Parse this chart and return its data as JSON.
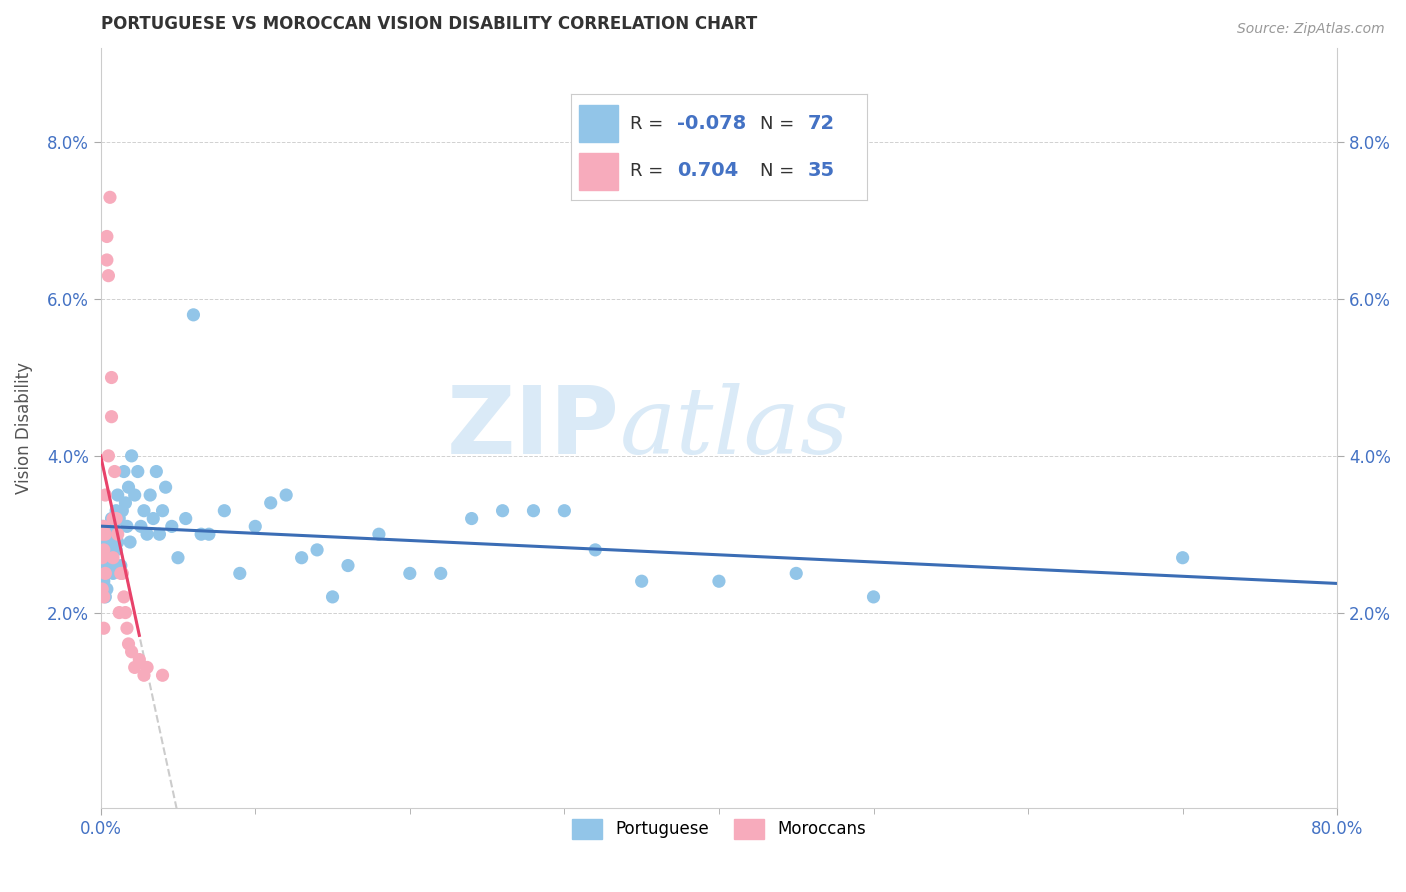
{
  "title": "PORTUGUESE VS MOROCCAN VISION DISABILITY CORRELATION CHART",
  "source": "Source: ZipAtlas.com",
  "ylabel": "Vision Disability",
  "xlim": [
    0.0,
    0.8
  ],
  "ylim": [
    -0.005,
    0.092
  ],
  "yticks": [
    0.02,
    0.04,
    0.06,
    0.08
  ],
  "yticklabels": [
    "2.0%",
    "4.0%",
    "6.0%",
    "8.0%"
  ],
  "xtick_positions": [
    0.0,
    0.8
  ],
  "xticklabels": [
    "0.0%",
    "80.0%"
  ],
  "portuguese_color": "#92C5E8",
  "moroccan_color": "#F7ABBC",
  "portuguese_line_color": "#3B6DB5",
  "moroccan_line_color": "#E8426A",
  "moroccan_dash_color": "#CCCCCC",
  "tick_label_color": "#4472c4",
  "watermark_color": "#DAEAF7",
  "watermark": "ZIPatlas",
  "portuguese_data_x": [
    0.001,
    0.001,
    0.002,
    0.002,
    0.003,
    0.003,
    0.003,
    0.004,
    0.004,
    0.004,
    0.005,
    0.005,
    0.006,
    0.006,
    0.007,
    0.007,
    0.008,
    0.008,
    0.009,
    0.009,
    0.01,
    0.01,
    0.011,
    0.011,
    0.012,
    0.013,
    0.014,
    0.015,
    0.016,
    0.017,
    0.018,
    0.019,
    0.02,
    0.022,
    0.024,
    0.026,
    0.028,
    0.03,
    0.032,
    0.034,
    0.036,
    0.038,
    0.04,
    0.042,
    0.046,
    0.05,
    0.055,
    0.06,
    0.065,
    0.07,
    0.08,
    0.09,
    0.1,
    0.11,
    0.12,
    0.13,
    0.14,
    0.15,
    0.16,
    0.18,
    0.2,
    0.22,
    0.24,
    0.26,
    0.28,
    0.3,
    0.32,
    0.35,
    0.4,
    0.45,
    0.5,
    0.7
  ],
  "portuguese_data_y": [
    0.031,
    0.026,
    0.029,
    0.024,
    0.028,
    0.025,
    0.022,
    0.03,
    0.027,
    0.023,
    0.031,
    0.028,
    0.029,
    0.026,
    0.032,
    0.027,
    0.031,
    0.025,
    0.03,
    0.026,
    0.033,
    0.028,
    0.035,
    0.029,
    0.032,
    0.026,
    0.033,
    0.038,
    0.034,
    0.031,
    0.036,
    0.029,
    0.04,
    0.035,
    0.038,
    0.031,
    0.033,
    0.03,
    0.035,
    0.032,
    0.038,
    0.03,
    0.033,
    0.036,
    0.031,
    0.027,
    0.032,
    0.058,
    0.03,
    0.03,
    0.033,
    0.025,
    0.031,
    0.034,
    0.035,
    0.027,
    0.028,
    0.022,
    0.026,
    0.03,
    0.025,
    0.025,
    0.032,
    0.033,
    0.033,
    0.033,
    0.028,
    0.024,
    0.024,
    0.025,
    0.022,
    0.027
  ],
  "moroccan_data_x": [
    0.001,
    0.001,
    0.001,
    0.002,
    0.002,
    0.002,
    0.002,
    0.003,
    0.003,
    0.003,
    0.004,
    0.004,
    0.005,
    0.005,
    0.006,
    0.007,
    0.007,
    0.008,
    0.008,
    0.009,
    0.01,
    0.011,
    0.012,
    0.013,
    0.014,
    0.015,
    0.016,
    0.017,
    0.018,
    0.02,
    0.022,
    0.025,
    0.028,
    0.03,
    0.04
  ],
  "moroccan_data_y": [
    0.03,
    0.027,
    0.023,
    0.031,
    0.028,
    0.022,
    0.018,
    0.035,
    0.03,
    0.025,
    0.065,
    0.068,
    0.063,
    0.04,
    0.073,
    0.05,
    0.045,
    0.032,
    0.027,
    0.038,
    0.032,
    0.03,
    0.02,
    0.025,
    0.025,
    0.022,
    0.02,
    0.018,
    0.016,
    0.015,
    0.013,
    0.014,
    0.012,
    0.013,
    0.012
  ]
}
